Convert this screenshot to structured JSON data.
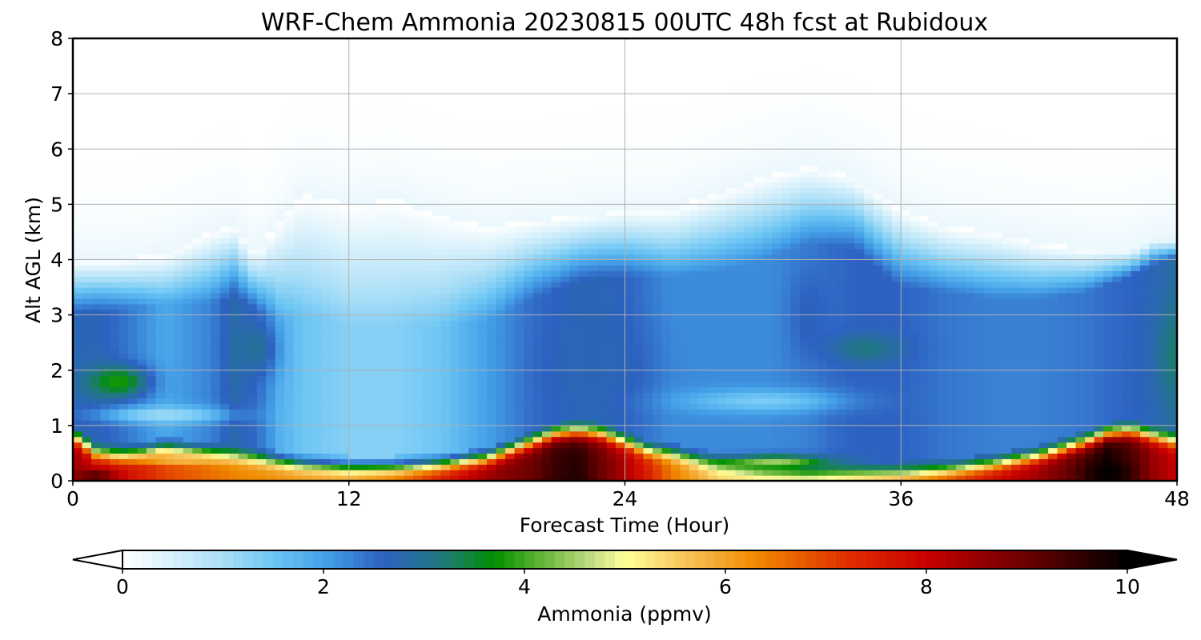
{
  "chart_data": {
    "type": "heatmap",
    "title": "WRF-Chem Ammonia  20230815 00UTC 48h fcst at Rubidoux",
    "xlabel": "Forecast Time (Hour)",
    "ylabel": "Alt AGL (km)",
    "xlim": [
      0,
      48
    ],
    "ylim": [
      0,
      8
    ],
    "xticks": [
      0,
      12,
      24,
      36,
      48
    ],
    "yticks": [
      0,
      1,
      2,
      3,
      4,
      5,
      6,
      7,
      8
    ],
    "grid": true,
    "colorbar": {
      "label": "Ammonia  (ppmv)",
      "range": [
        0,
        10
      ],
      "ticks": [
        0,
        2,
        4,
        6,
        8,
        10
      ],
      "extend": "both",
      "colors": [
        [
          0,
          "#ffffff"
        ],
        [
          0.5,
          "#d6f0fb"
        ],
        [
          1,
          "#a9def7"
        ],
        [
          1.5,
          "#6ec6f4"
        ],
        [
          2,
          "#45a1e8"
        ],
        [
          2.6,
          "#2d62c2"
        ],
        [
          3.2,
          "#1f7a7a"
        ],
        [
          3.7,
          "#009000"
        ],
        [
          4.2,
          "#6ab63c"
        ],
        [
          4.7,
          "#c8e08a"
        ],
        [
          5,
          "#ffff99"
        ],
        [
          5.6,
          "#f7c45a"
        ],
        [
          6.3,
          "#f08a00"
        ],
        [
          7.2,
          "#e03000"
        ],
        [
          8,
          "#c80000"
        ],
        [
          9,
          "#6a0000"
        ],
        [
          10,
          "#000000"
        ]
      ]
    },
    "x": [
      0,
      1,
      2,
      3,
      4,
      6,
      7,
      8,
      9,
      10,
      12,
      14,
      16,
      18,
      20,
      21,
      22,
      23,
      24,
      25,
      26,
      28,
      30,
      32,
      33,
      34,
      36,
      38,
      40,
      42,
      44,
      45,
      46,
      47,
      48
    ],
    "surface": [
      [
        0,
        2.7,
        0.8,
        8.5
      ],
      [
        1,
        2.7,
        0.5,
        8.0
      ],
      [
        2,
        2.5,
        0.45,
        7.9
      ],
      [
        3,
        2.2,
        0.5,
        7.5
      ],
      [
        4,
        1.9,
        0.6,
        7.0
      ],
      [
        6,
        2.3,
        0.5,
        6.6
      ],
      [
        7,
        2.8,
        0.45,
        6.4
      ],
      [
        8,
        2.5,
        0.4,
        6.3
      ],
      [
        9,
        1.8,
        0.35,
        6.2
      ],
      [
        10,
        1.5,
        0.3,
        6.1
      ],
      [
        12,
        1.3,
        0.25,
        6.0
      ],
      [
        14,
        1.3,
        0.25,
        6.5
      ],
      [
        16,
        1.5,
        0.3,
        7.5
      ],
      [
        18,
        2.0,
        0.4,
        8.5
      ],
      [
        20,
        2.5,
        0.7,
        9.0
      ],
      [
        21,
        2.6,
        0.85,
        9.5
      ],
      [
        22,
        2.7,
        0.9,
        9.7
      ],
      [
        23,
        2.7,
        0.85,
        9.0
      ],
      [
        24,
        2.6,
        0.7,
        8.3
      ],
      [
        25,
        2.4,
        0.55,
        7.5
      ],
      [
        26,
        2.2,
        0.5,
        6.5
      ],
      [
        28,
        2.2,
        0.3,
        5.5
      ],
      [
        30,
        2.2,
        0.2,
        5.3
      ],
      [
        32,
        2.3,
        0.15,
        5.4
      ],
      [
        33,
        2.5,
        0.15,
        5.6
      ],
      [
        34,
        2.6,
        0.15,
        5.8
      ],
      [
        36,
        2.6,
        0.15,
        6.3
      ],
      [
        38,
        2.4,
        0.2,
        7.0
      ],
      [
        40,
        2.3,
        0.3,
        7.8
      ],
      [
        42,
        2.3,
        0.45,
        8.5
      ],
      [
        44,
        2.4,
        0.7,
        9.3
      ],
      [
        45,
        2.5,
        0.85,
        9.8
      ],
      [
        46,
        2.6,
        0.9,
        9.3
      ],
      [
        47,
        2.7,
        0.8,
        8.5
      ],
      [
        48,
        2.9,
        0.7,
        8.0
      ]
    ],
    "envelope": [
      [
        0,
        4.0,
        3.0,
        1.6
      ],
      [
        2,
        4.0,
        3.1,
        1.6
      ],
      [
        4,
        4.1,
        3.2,
        1.5
      ],
      [
        6,
        4.5,
        3.2,
        1.5
      ],
      [
        7,
        4.6,
        3.3,
        1.5
      ],
      [
        8,
        4.1,
        3.1,
        1.5
      ],
      [
        9,
        4.7,
        2.9,
        1.4
      ],
      [
        10,
        5.2,
        3.0,
        1.4
      ],
      [
        12,
        5.0,
        2.8,
        1.3
      ],
      [
        14,
        5.1,
        2.8,
        1.3
      ],
      [
        16,
        4.8,
        2.8,
        1.3
      ],
      [
        18,
        4.6,
        2.9,
        1.4
      ],
      [
        20,
        4.7,
        3.3,
        1.5
      ],
      [
        22,
        4.8,
        3.6,
        1.6
      ],
      [
        24,
        4.9,
        3.7,
        1.6
      ],
      [
        26,
        4.9,
        3.7,
        1.6
      ],
      [
        28,
        5.2,
        3.8,
        1.7
      ],
      [
        30,
        5.5,
        4.0,
        1.8
      ],
      [
        32,
        5.7,
        4.3,
        1.9
      ],
      [
        34,
        5.5,
        4.2,
        1.8
      ],
      [
        36,
        4.9,
        3.5,
        1.6
      ],
      [
        38,
        4.6,
        3.4,
        1.6
      ],
      [
        40,
        4.5,
        3.3,
        1.5
      ],
      [
        42,
        4.3,
        3.3,
        1.5
      ],
      [
        44,
        4.2,
        3.4,
        1.5
      ],
      [
        46,
        4.2,
        3.7,
        1.6
      ],
      [
        47,
        4.4,
        3.9,
        1.7
      ],
      [
        48,
        4.4,
        4.0,
        1.8
      ]
    ],
    "features": [
      [
        2,
        1.8,
        1.3,
        0.28,
        4.0
      ],
      [
        8,
        2.4,
        0.9,
        0.5,
        3.0
      ],
      [
        4,
        1.2,
        2.8,
        0.15,
        1.0
      ],
      [
        23,
        2.1,
        2.2,
        0.8,
        2.7
      ],
      [
        32,
        3.0,
        0.9,
        0.9,
        2.7
      ],
      [
        34.5,
        2.4,
        1.5,
        0.25,
        3.2
      ],
      [
        30,
        1.45,
        3.5,
        0.2,
        1.3
      ],
      [
        48,
        2.3,
        0.8,
        0.8,
        3.3
      ],
      [
        30.5,
        0.35,
        2.4,
        0.12,
        4.7
      ],
      [
        4.5,
        0.4,
        2.0,
        0.08,
        5.3
      ],
      [
        45,
        0.15,
        1.0,
        0.2,
        10.0
      ],
      [
        1,
        0.1,
        0.8,
        0.1,
        9.5
      ]
    ]
  }
}
